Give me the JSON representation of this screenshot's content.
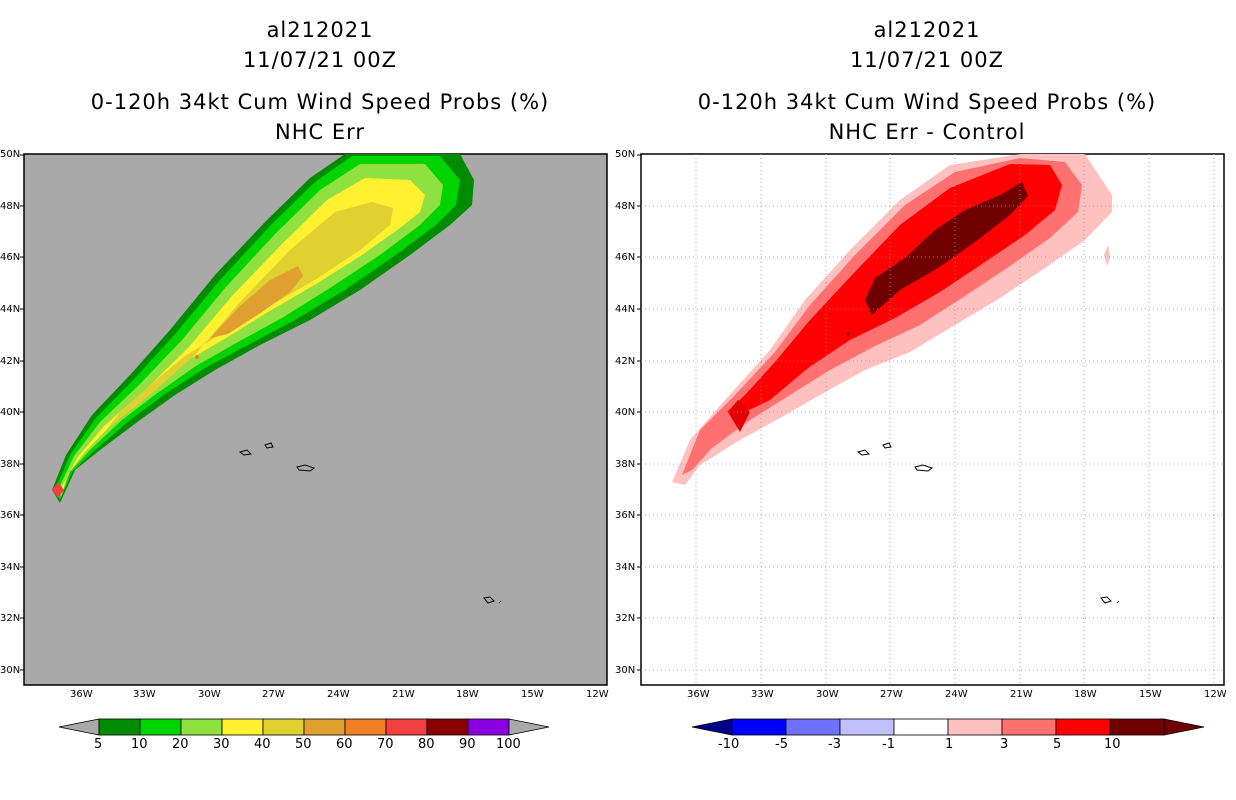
{
  "left": {
    "title_line1": "al212021",
    "title_line2": "11/07/21 00Z",
    "title_line3": "0-120h 34kt Cum Wind Speed Probs (%)",
    "title_line4": "NHC Err",
    "background": "#a9a9a9"
  },
  "right": {
    "title_line1": "al212021",
    "title_line2": "11/07/21 00Z",
    "title_line3": "0-120h 34kt Cum Wind Speed Probs (%)",
    "title_line4": "NHC Err - Control",
    "background": "#ffffff"
  },
  "axes": {
    "lat_labels": [
      "30N",
      "32N",
      "34N",
      "36N",
      "38N",
      "40N",
      "42N",
      "44N",
      "46N",
      "48N",
      "50N"
    ],
    "lon_labels": [
      "36W",
      "33W",
      "30W",
      "27W",
      "24W",
      "21W",
      "18W",
      "15W",
      "12W"
    ]
  },
  "left_colorbar": {
    "colors": [
      "#008b00",
      "#00d400",
      "#8fe040",
      "#fff030",
      "#e0d030",
      "#e0a030",
      "#f08028",
      "#f04040",
      "#8b0000",
      "#8b00e0"
    ],
    "labels": [
      "5",
      "10",
      "20",
      "30",
      "40",
      "50",
      "60",
      "70",
      "80",
      "90",
      "100"
    ],
    "end_color": "#a9a9a9"
  },
  "right_colorbar": {
    "colors": [
      "#0000c8",
      "#0000ff",
      "#7070ff",
      "#c0c0ff",
      "#ffffff",
      "#ffc0c0",
      "#ff7070",
      "#ff0000",
      "#700000"
    ],
    "labels": [
      "-10",
      "-5",
      "-3",
      "-1",
      "1",
      "3",
      "5",
      "10"
    ],
    "low_end_color": "#00008b",
    "high_end_color": "#700000"
  }
}
